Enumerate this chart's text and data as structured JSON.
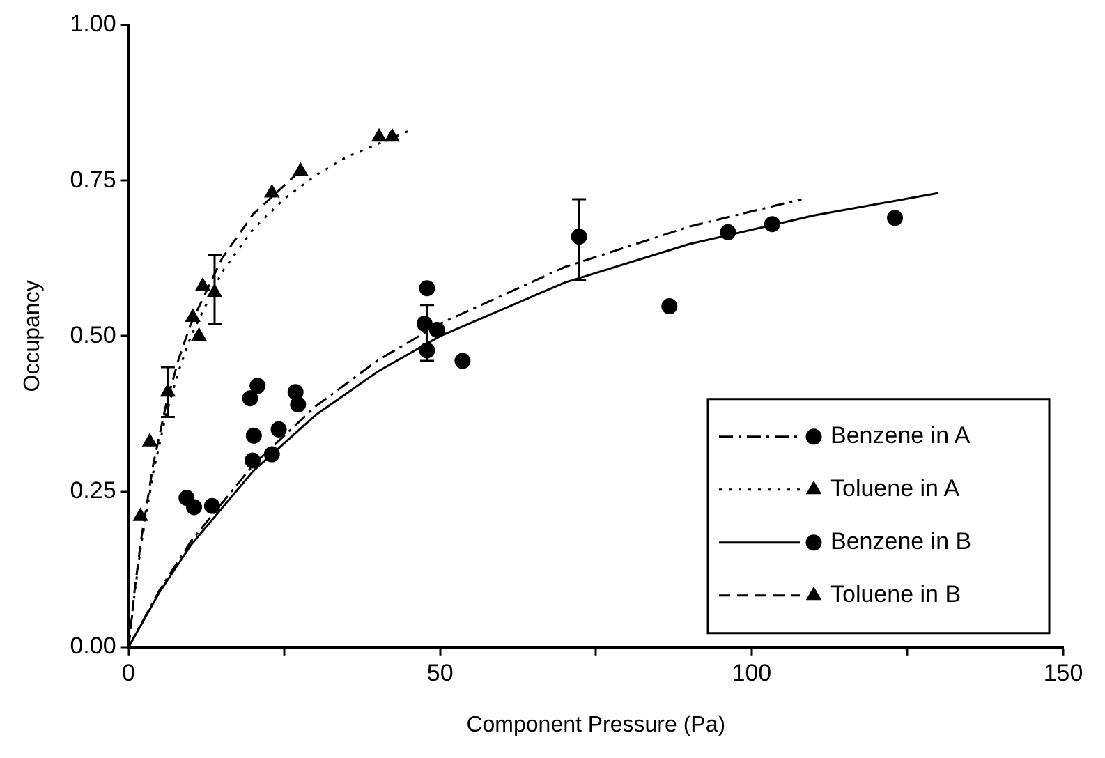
{
  "chart_data": {
    "type": "scatter",
    "xlabel": "Component Pressure (Pa)",
    "ylabel": "Occupancy",
    "xlim": [
      0,
      150
    ],
    "xticks": [
      0,
      {
        "value": 25,
        "label": null
      },
      50,
      {
        "value": 75,
        "label": null
      },
      100,
      {
        "value": 125,
        "label": null
      },
      150
    ],
    "ylim": [
      0,
      1
    ],
    "yticks": [
      {
        "value": 0,
        "label": "0.00"
      },
      {
        "value": 0.25,
        "label": "0.25"
      },
      {
        "value": 0.5,
        "label": "0.50"
      },
      {
        "value": 0.75,
        "label": "0.75"
      },
      {
        "value": 1,
        "label": "1.00"
      }
    ],
    "grid": false,
    "legend": "bottom right",
    "series": [
      {
        "name": "Benzene in A",
        "marker": "circle",
        "line_style": "dashdot",
        "color": "#000000",
        "x": [
          9.3,
          10.5,
          20.7,
          19.9,
          24.1,
          26.8,
          27.2,
          47.9,
          72.3,
          103.3
        ],
        "values": [
          0.24,
          0.225,
          0.42,
          0.3,
          0.35,
          0.41,
          0.39,
          0.477,
          0.66,
          0.68
        ],
        "errors": [
          null,
          null,
          null,
          null,
          null,
          null,
          null,
          [
            0.46,
            0.55
          ],
          [
            0.59,
            0.72
          ],
          null
        ]
      },
      {
        "name": "Toluene in A",
        "marker": "triangle",
        "line_style": "dotted",
        "color": "#000000",
        "x": [
          1.9,
          6.3,
          10.3,
          11.3,
          23,
          40.2,
          42.3
        ],
        "values": [
          0.21,
          0.41,
          0.53,
          0.5,
          0.73,
          0.82,
          0.82
        ],
        "errors": [
          null,
          [
            0.37,
            0.45
          ],
          null,
          null,
          null,
          null,
          null
        ]
      },
      {
        "name": "Benzene in B",
        "marker": "circle",
        "line_style": "solid",
        "color": "#000000",
        "x": [
          13.4,
          19.5,
          20.1,
          23,
          47.9,
          47.5,
          49.5,
          53.6,
          86.8,
          96.2,
          123
        ],
        "values": [
          0.227,
          0.4,
          0.34,
          0.31,
          0.577,
          0.52,
          0.51,
          0.46,
          0.548,
          0.667,
          0.69
        ]
      },
      {
        "name": "Toluene in B",
        "marker": "triangle",
        "line_style": "dashed",
        "color": "#000000",
        "x": [
          3.4,
          11.9,
          13.8,
          27.6
        ],
        "values": [
          0.33,
          0.58,
          0.57,
          0.765
        ],
        "errors": [
          null,
          null,
          [
            0.52,
            0.63
          ],
          null
        ]
      },
      {
        "type": "line",
        "line_style": "dashdot",
        "color": "#000000",
        "x": [
          0,
          5,
          10,
          20,
          30,
          40,
          50,
          70,
          90,
          108
        ],
        "values": [
          0,
          0.092,
          0.17,
          0.293,
          0.387,
          0.461,
          0.52,
          0.611,
          0.676,
          0.72
        ]
      },
      {
        "type": "line",
        "line_style": "dotted",
        "color": "#000000",
        "x": [
          0,
          1,
          2,
          4,
          6,
          8,
          10,
          15,
          20,
          25,
          30,
          35,
          45
        ],
        "values": [
          0,
          0.089,
          0.164,
          0.283,
          0.373,
          0.443,
          0.5,
          0.603,
          0.672,
          0.721,
          0.758,
          0.788,
          0.83
        ]
      },
      {
        "type": "line",
        "line_style": "solid",
        "color": "#000000",
        "x": [
          0,
          5,
          10,
          20,
          30,
          40,
          50,
          70,
          90,
          110,
          130
        ],
        "values": [
          0,
          0.089,
          0.164,
          0.283,
          0.373,
          0.443,
          0.5,
          0.586,
          0.648,
          0.694,
          0.73
        ]
      },
      {
        "type": "line",
        "line_style": "dashed",
        "color": "#000000",
        "x": [
          0,
          1,
          2,
          4,
          6,
          8,
          10,
          15,
          20,
          28
        ],
        "values": [
          0,
          0.094,
          0.172,
          0.296,
          0.389,
          0.462,
          0.52,
          0.625,
          0.696,
          0.77
        ]
      }
    ]
  }
}
